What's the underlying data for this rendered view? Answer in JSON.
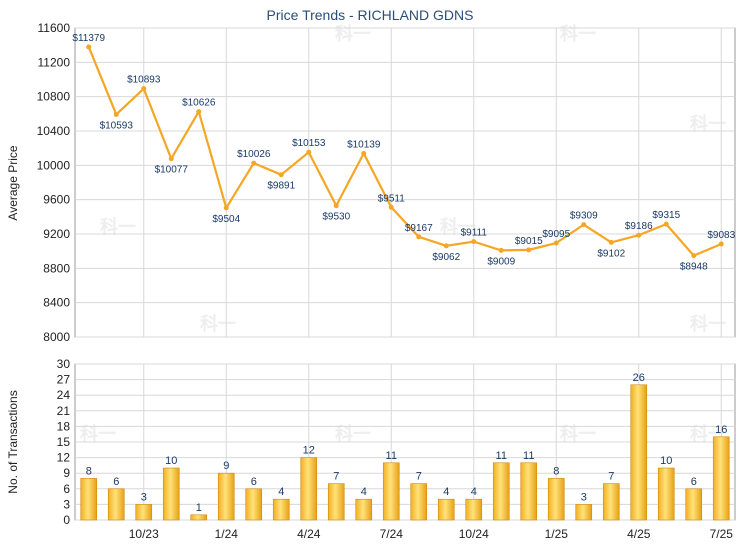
{
  "chart_data": [
    {
      "type": "line",
      "title": "Price Trends - RICHLAND GDNS",
      "ylabel": "Average Price",
      "ylim": [
        8000,
        11600
      ],
      "yticks": [
        8000,
        8400,
        8800,
        9200,
        9600,
        10000,
        10400,
        10800,
        11200,
        11600
      ],
      "x": [
        "8/23",
        "9/23",
        "10/23",
        "11/23",
        "12/23",
        "1/24",
        "2/24",
        "3/24",
        "4/24",
        "5/24",
        "6/24",
        "7/24",
        "8/24",
        "9/24",
        "10/24",
        "11/24",
        "12/24",
        "1/25",
        "2/25",
        "3/25",
        "4/25",
        "5/25",
        "6/25",
        "7/25"
      ],
      "xtick_labels": [
        "10/23",
        "1/24",
        "4/24",
        "7/24",
        "10/24",
        "1/25",
        "4/25",
        "7/25"
      ],
      "series": [
        {
          "values": [
            11379,
            10593,
            10893,
            10077,
            10626,
            9504,
            10026,
            9891,
            10153,
            9530,
            10139,
            9511,
            9167,
            9062,
            9111,
            9009,
            9015,
            9095,
            9309,
            9102,
            9186,
            9315,
            8948,
            9083
          ],
          "labels": [
            "$11379",
            "$10593",
            "$10893",
            "$10077",
            "$10626",
            "$9504",
            "$10026",
            "$9891",
            "$10153",
            "$9530",
            "$10139",
            "$9511",
            "$9167",
            "$9062",
            "$9111",
            "$9009",
            "$9015",
            "$9095",
            "$9309",
            "$9102",
            "$9186",
            "$9315",
            "$8948",
            "$9083"
          ],
          "color": "#F5A623"
        }
      ],
      "grid": true
    },
    {
      "type": "bar",
      "ylabel": "No. of Transactions",
      "ylim": [
        0,
        30
      ],
      "yticks": [
        0,
        3,
        6,
        9,
        12,
        15,
        18,
        21,
        24,
        27,
        30
      ],
      "categories": [
        "8/23",
        "9/23",
        "10/23",
        "11/23",
        "12/23",
        "1/24",
        "2/24",
        "3/24",
        "4/24",
        "5/24",
        "6/24",
        "7/24",
        "8/24",
        "9/24",
        "10/24",
        "11/24",
        "12/24",
        "1/25",
        "2/25",
        "3/25",
        "4/25",
        "5/25",
        "6/25",
        "7/25"
      ],
      "xtick_labels": [
        "10/23",
        "1/24",
        "4/24",
        "7/24",
        "10/24",
        "1/25",
        "4/25",
        "7/25"
      ],
      "values": [
        8,
        6,
        3,
        10,
        1,
        9,
        6,
        4,
        12,
        7,
        4,
        11,
        7,
        4,
        4,
        11,
        11,
        8,
        3,
        7,
        26,
        10,
        6,
        16
      ],
      "color": "#F5A623",
      "grid": true
    }
  ],
  "watermark": "科一"
}
